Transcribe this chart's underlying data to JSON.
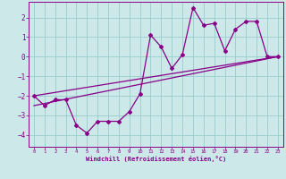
{
  "xlabel": "Windchill (Refroidissement éolien,°C)",
  "xlim": [
    -0.5,
    23.5
  ],
  "ylim": [
    -4.6,
    2.8
  ],
  "xticks": [
    0,
    1,
    2,
    3,
    4,
    5,
    6,
    7,
    8,
    9,
    10,
    11,
    12,
    13,
    14,
    15,
    16,
    17,
    18,
    19,
    20,
    21,
    22,
    23
  ],
  "yticks": [
    -4,
    -3,
    -2,
    -1,
    0,
    1,
    2
  ],
  "bg_color": "#cce8e8",
  "line_color": "#880088",
  "grid_color": "#99cccc",
  "line1_x": [
    0,
    1,
    2,
    3,
    4,
    5,
    6,
    7,
    8,
    9,
    10,
    11,
    12,
    13,
    14,
    15,
    16,
    17,
    18,
    19,
    20,
    21,
    22,
    23
  ],
  "line1_y": [
    -2.0,
    -2.5,
    -2.2,
    -2.2,
    -3.5,
    -3.9,
    -3.3,
    -3.3,
    -3.3,
    -2.8,
    -1.9,
    1.1,
    0.5,
    -0.6,
    0.1,
    2.5,
    1.6,
    1.7,
    0.3,
    1.4,
    1.8,
    1.8,
    0.0,
    0.0
  ],
  "line2_x": [
    0,
    23
  ],
  "line2_y": [
    -2.0,
    0.0
  ],
  "line3_x": [
    0,
    23
  ],
  "line3_y": [
    -2.5,
    0.0
  ],
  "figsize": [
    3.2,
    2.0
  ],
  "dpi": 100
}
